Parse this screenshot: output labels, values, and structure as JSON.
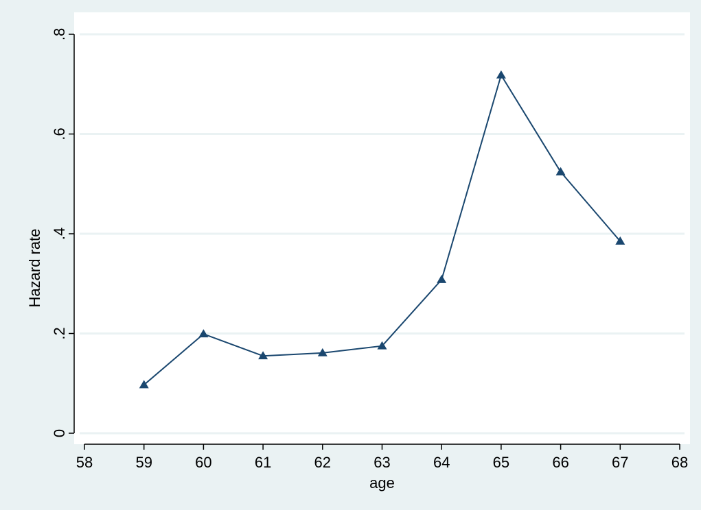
{
  "chart_data": {
    "type": "line",
    "xlabel": "age",
    "ylabel": "Hazard rate",
    "xlim": [
      58,
      68
    ],
    "ylim": [
      0,
      0.8
    ],
    "x_ticks": [
      {
        "value": 58,
        "label": "58"
      },
      {
        "value": 59,
        "label": "59"
      },
      {
        "value": 60,
        "label": "60"
      },
      {
        "value": 61,
        "label": "61"
      },
      {
        "value": 62,
        "label": "62"
      },
      {
        "value": 63,
        "label": "63"
      },
      {
        "value": 64,
        "label": "64"
      },
      {
        "value": 65,
        "label": "65"
      },
      {
        "value": 66,
        "label": "66"
      },
      {
        "value": 67,
        "label": "67"
      },
      {
        "value": 68,
        "label": "68"
      }
    ],
    "y_ticks": [
      {
        "value": 0,
        "label": "0"
      },
      {
        "value": 0.2,
        "label": ".2"
      },
      {
        "value": 0.4,
        "label": ".4"
      },
      {
        "value": 0.6,
        "label": ".6"
      },
      {
        "value": 0.8,
        "label": ".8"
      }
    ],
    "grid": true,
    "series": [
      {
        "x": [
          59,
          60,
          61,
          62,
          63,
          64,
          65,
          66,
          67
        ],
        "y": [
          0.097,
          0.199,
          0.155,
          0.161,
          0.175,
          0.308,
          0.718,
          0.524,
          0.385
        ],
        "marker": "triangle",
        "color": "#1a476f"
      }
    ]
  },
  "colors": {
    "background": "#eaf2f3",
    "plot_area": "#ffffff",
    "gridline": "#eaf2f3",
    "series": "#1a476f",
    "axis": "#000000"
  }
}
